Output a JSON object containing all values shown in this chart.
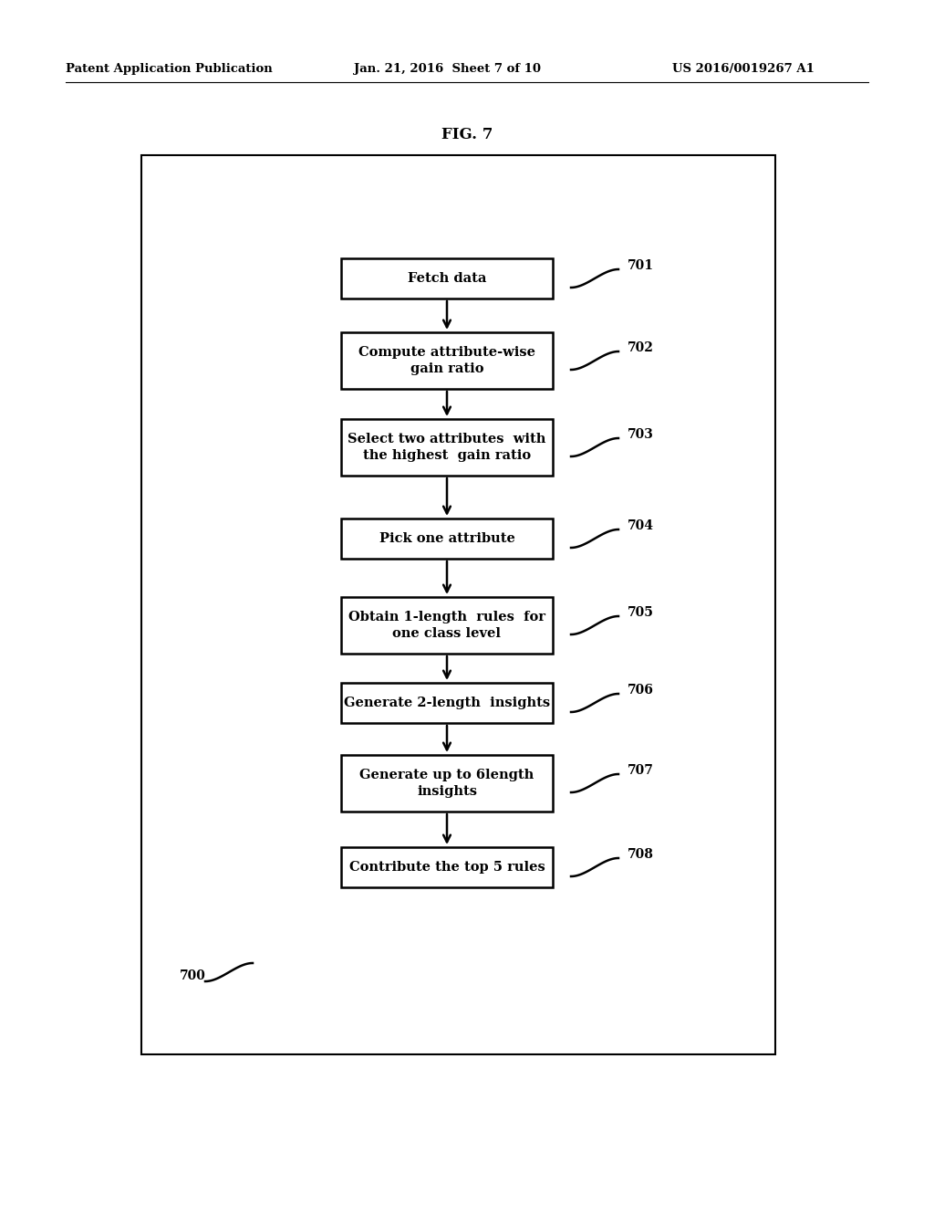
{
  "fig_label": "FIG. 7",
  "patent_header": "Patent Application Publication",
  "patent_date": "Jan. 21, 2016  Sheet 7 of 10",
  "patent_number": "US 2016/0019267 A1",
  "diagram_label": "700",
  "boxes": [
    {
      "id": "701",
      "lines": [
        "Fetch data"
      ],
      "double": false
    },
    {
      "id": "702",
      "lines": [
        "Compute attribute-wise",
        "gain ratio"
      ],
      "double": true
    },
    {
      "id": "703",
      "lines": [
        "Select two attributes  with",
        "the highest  gain ratio"
      ],
      "double": true
    },
    {
      "id": "704",
      "lines": [
        "Pick one attribute"
      ],
      "double": false
    },
    {
      "id": "705",
      "lines": [
        "Obtain 1-length  rules  for",
        "one class level"
      ],
      "double": true
    },
    {
      "id": "706",
      "lines": [
        "Generate 2-length  insights"
      ],
      "double": false
    },
    {
      "id": "707",
      "lines": [
        "Generate up to 6length",
        "insights"
      ],
      "double": true
    },
    {
      "id": "708",
      "lines": [
        "Contribute the top 5 rules"
      ],
      "double": false
    }
  ],
  "background_color": "#ffffff",
  "text_color": "#000000"
}
